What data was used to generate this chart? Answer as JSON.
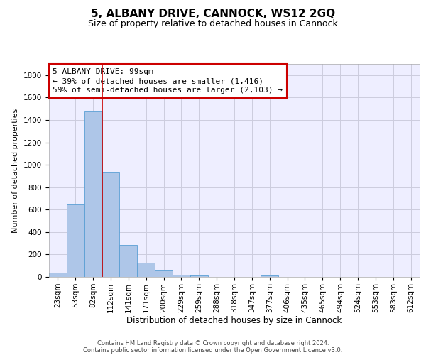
{
  "title": "5, ALBANY DRIVE, CANNOCK, WS12 2GQ",
  "subtitle": "Size of property relative to detached houses in Cannock",
  "xlabel": "Distribution of detached houses by size in Cannock",
  "ylabel": "Number of detached properties",
  "footer_line1": "Contains HM Land Registry data © Crown copyright and database right 2024.",
  "footer_line2": "Contains public sector information licensed under the Open Government Licence v3.0.",
  "bin_labels": [
    "23sqm",
    "53sqm",
    "82sqm",
    "112sqm",
    "141sqm",
    "171sqm",
    "200sqm",
    "229sqm",
    "259sqm",
    "288sqm",
    "318sqm",
    "347sqm",
    "377sqm",
    "406sqm",
    "435sqm",
    "465sqm",
    "494sqm",
    "524sqm",
    "553sqm",
    "583sqm",
    "612sqm"
  ],
  "bar_values": [
    38,
    645,
    1474,
    938,
    283,
    128,
    62,
    22,
    12,
    0,
    0,
    0,
    12,
    0,
    0,
    0,
    0,
    0,
    0,
    0,
    0
  ],
  "bar_color": "#aec6e8",
  "bar_edge_color": "#5a9fd4",
  "grid_color": "#ccccdd",
  "background_color": "#eeeeff",
  "property_line_x": 2.5,
  "property_line_color": "#cc0000",
  "ylim": [
    0,
    1900
  ],
  "yticks": [
    0,
    200,
    400,
    600,
    800,
    1000,
    1200,
    1400,
    1600,
    1800
  ],
  "annotation_text_line1": "5 ALBANY DRIVE: 99sqm",
  "annotation_text_line2": "← 39% of detached houses are smaller (1,416)",
  "annotation_text_line3": "59% of semi-detached houses are larger (2,103) →",
  "annotation_box_color": "#cc0000",
  "title_fontsize": 11,
  "subtitle_fontsize": 9,
  "annotation_fontsize": 8,
  "tick_fontsize": 7.5,
  "ylabel_fontsize": 8,
  "xlabel_fontsize": 8.5
}
